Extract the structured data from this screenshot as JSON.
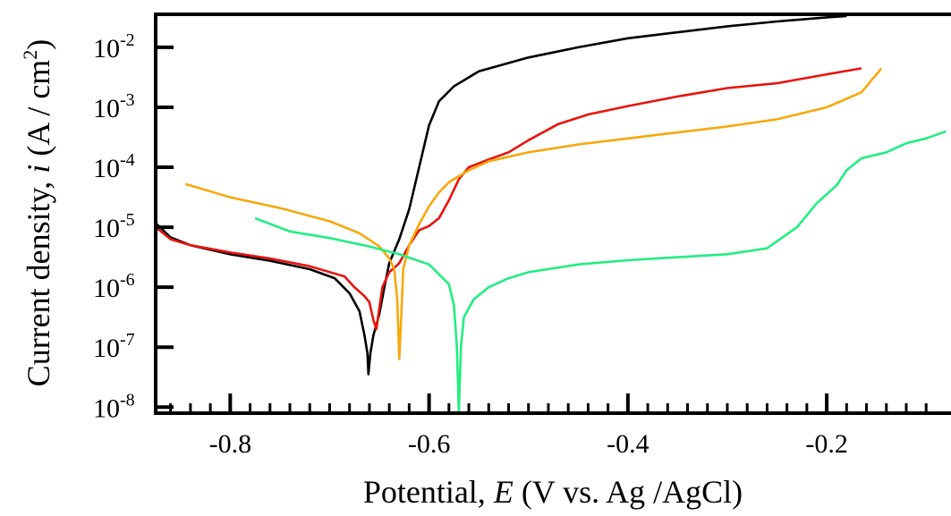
{
  "chart_data": {
    "type": "line",
    "title": "",
    "xlabel": {
      "prefix": "Potential, ",
      "italic": "E",
      "suffix": " (V vs. Ag /AgCl)"
    },
    "ylabel": {
      "prefix": "Current density, ",
      "italic": "i",
      "middle": " (A / cm",
      "superscript": "2",
      "suffix": ")"
    },
    "xlim": [
      -0.875,
      -0.075
    ],
    "ylim_log10": [
      -8.1,
      -1.45
    ],
    "y_scale": "log",
    "grid": false,
    "legend": "none",
    "x_ticks": [
      {
        "value": -0.8,
        "label": "-0.8"
      },
      {
        "value": -0.6,
        "label": "-0.6"
      },
      {
        "value": -0.4,
        "label": "-0.4"
      },
      {
        "value": -0.2,
        "label": "-0.2"
      }
    ],
    "x_minor_ticks": [
      -0.86,
      -0.84,
      -0.82,
      -0.78,
      -0.76,
      -0.74,
      -0.72,
      -0.7,
      -0.68,
      -0.66,
      -0.64,
      -0.62,
      -0.58,
      -0.56,
      -0.54,
      -0.52,
      -0.5,
      -0.48,
      -0.46,
      -0.44,
      -0.42,
      -0.38,
      -0.36,
      -0.34,
      -0.32,
      -0.3,
      -0.28,
      -0.26,
      -0.24,
      -0.22,
      -0.18,
      -0.16,
      -0.14,
      -0.12,
      -0.1
    ],
    "y_ticks": [
      {
        "exp": -8,
        "base": "10",
        "sup": "-8"
      },
      {
        "exp": -7,
        "base": "10",
        "sup": "-7"
      },
      {
        "exp": -6,
        "base": "10",
        "sup": "-6"
      },
      {
        "exp": -5,
        "base": "10",
        "sup": "-5"
      },
      {
        "exp": -4,
        "base": "10",
        "sup": "-4"
      },
      {
        "exp": -3,
        "base": "10",
        "sup": "-3"
      },
      {
        "exp": -2,
        "base": "10",
        "sup": "-2"
      }
    ],
    "series": [
      {
        "color": "#000000",
        "points": [
          [
            -0.875,
            -4.93
          ],
          [
            -0.86,
            -5.17
          ],
          [
            -0.84,
            -5.3
          ],
          [
            -0.8,
            -5.45
          ],
          [
            -0.76,
            -5.56
          ],
          [
            -0.72,
            -5.7
          ],
          [
            -0.695,
            -5.85
          ],
          [
            -0.68,
            -6.1
          ],
          [
            -0.67,
            -6.4
          ],
          [
            -0.665,
            -6.8
          ],
          [
            -0.662,
            -7.1
          ],
          [
            -0.661,
            -7.45
          ],
          [
            -0.659,
            -7.1
          ],
          [
            -0.656,
            -6.8
          ],
          [
            -0.65,
            -6.45
          ],
          [
            -0.645,
            -6.0
          ],
          [
            -0.64,
            -5.6
          ],
          [
            -0.63,
            -5.2
          ],
          [
            -0.62,
            -4.7
          ],
          [
            -0.61,
            -4.0
          ],
          [
            -0.6,
            -3.3
          ],
          [
            -0.59,
            -2.9
          ],
          [
            -0.575,
            -2.65
          ],
          [
            -0.55,
            -2.4
          ],
          [
            -0.5,
            -2.17
          ],
          [
            -0.45,
            -2.0
          ],
          [
            -0.4,
            -1.85
          ],
          [
            -0.35,
            -1.75
          ],
          [
            -0.3,
            -1.65
          ],
          [
            -0.25,
            -1.57
          ],
          [
            -0.2,
            -1.5
          ],
          [
            -0.18,
            -1.48
          ]
        ]
      },
      {
        "color": "#e8130d",
        "points": [
          [
            -0.875,
            -5.0
          ],
          [
            -0.86,
            -5.2
          ],
          [
            -0.84,
            -5.3
          ],
          [
            -0.8,
            -5.42
          ],
          [
            -0.76,
            -5.52
          ],
          [
            -0.72,
            -5.65
          ],
          [
            -0.685,
            -5.82
          ],
          [
            -0.675,
            -6.0
          ],
          [
            -0.665,
            -6.15
          ],
          [
            -0.66,
            -6.25
          ],
          [
            -0.656,
            -6.55
          ],
          [
            -0.653,
            -6.7
          ],
          [
            -0.65,
            -6.35
          ],
          [
            -0.647,
            -6.0
          ],
          [
            -0.64,
            -5.75
          ],
          [
            -0.63,
            -5.6
          ],
          [
            -0.62,
            -5.3
          ],
          [
            -0.61,
            -5.05
          ],
          [
            -0.6,
            -4.98
          ],
          [
            -0.59,
            -4.85
          ],
          [
            -0.58,
            -4.55
          ],
          [
            -0.57,
            -4.2
          ],
          [
            -0.56,
            -4.0
          ],
          [
            -0.54,
            -3.87
          ],
          [
            -0.52,
            -3.75
          ],
          [
            -0.5,
            -3.55
          ],
          [
            -0.47,
            -3.28
          ],
          [
            -0.44,
            -3.12
          ],
          [
            -0.4,
            -2.98
          ],
          [
            -0.35,
            -2.82
          ],
          [
            -0.3,
            -2.68
          ],
          [
            -0.25,
            -2.6
          ],
          [
            -0.2,
            -2.45
          ],
          [
            -0.165,
            -2.35
          ]
        ]
      },
      {
        "color": "#f7a80c",
        "points": [
          [
            -0.845,
            -4.28
          ],
          [
            -0.8,
            -4.5
          ],
          [
            -0.75,
            -4.68
          ],
          [
            -0.7,
            -4.9
          ],
          [
            -0.67,
            -5.1
          ],
          [
            -0.65,
            -5.32
          ],
          [
            -0.64,
            -5.52
          ],
          [
            -0.635,
            -5.7
          ],
          [
            -0.632,
            -6.2
          ],
          [
            -0.63,
            -7.2
          ],
          [
            -0.628,
            -6.5
          ],
          [
            -0.626,
            -5.7
          ],
          [
            -0.62,
            -5.3
          ],
          [
            -0.61,
            -4.95
          ],
          [
            -0.6,
            -4.65
          ],
          [
            -0.59,
            -4.42
          ],
          [
            -0.58,
            -4.25
          ],
          [
            -0.56,
            -4.05
          ],
          [
            -0.54,
            -3.9
          ],
          [
            -0.5,
            -3.75
          ],
          [
            -0.45,
            -3.62
          ],
          [
            -0.4,
            -3.52
          ],
          [
            -0.35,
            -3.42
          ],
          [
            -0.3,
            -3.32
          ],
          [
            -0.25,
            -3.2
          ],
          [
            -0.2,
            -3.0
          ],
          [
            -0.165,
            -2.75
          ],
          [
            -0.145,
            -2.35
          ]
        ]
      },
      {
        "color": "#22ed82",
        "points": [
          [
            -0.775,
            -4.85
          ],
          [
            -0.74,
            -5.07
          ],
          [
            -0.7,
            -5.18
          ],
          [
            -0.66,
            -5.32
          ],
          [
            -0.63,
            -5.45
          ],
          [
            -0.6,
            -5.62
          ],
          [
            -0.58,
            -5.95
          ],
          [
            -0.575,
            -6.3
          ],
          [
            -0.572,
            -7.0
          ],
          [
            -0.57,
            -8.08
          ],
          [
            -0.568,
            -7.0
          ],
          [
            -0.565,
            -6.5
          ],
          [
            -0.555,
            -6.2
          ],
          [
            -0.54,
            -6.0
          ],
          [
            -0.52,
            -5.85
          ],
          [
            -0.5,
            -5.75
          ],
          [
            -0.45,
            -5.62
          ],
          [
            -0.4,
            -5.55
          ],
          [
            -0.35,
            -5.5
          ],
          [
            -0.3,
            -5.45
          ],
          [
            -0.26,
            -5.35
          ],
          [
            -0.23,
            -5.0
          ],
          [
            -0.21,
            -4.6
          ],
          [
            -0.19,
            -4.3
          ],
          [
            -0.18,
            -4.05
          ],
          [
            -0.165,
            -3.85
          ],
          [
            -0.14,
            -3.75
          ],
          [
            -0.12,
            -3.6
          ],
          [
            -0.1,
            -3.52
          ],
          [
            -0.08,
            -3.4
          ]
        ]
      }
    ]
  }
}
